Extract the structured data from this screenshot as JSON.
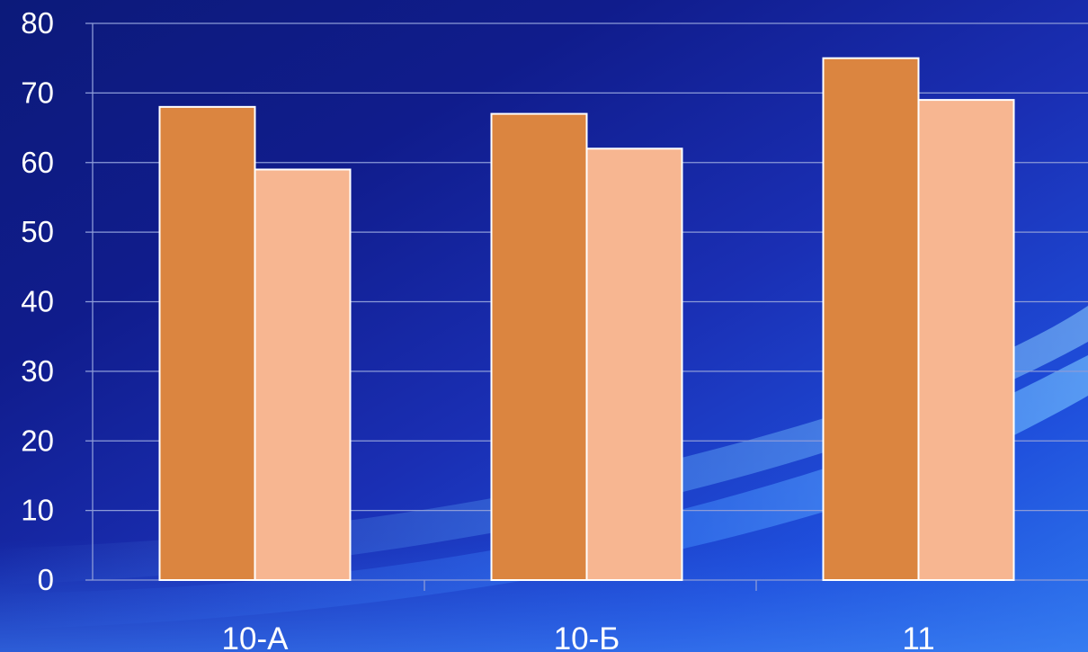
{
  "chart_data": {
    "type": "bar",
    "title": "",
    "xlabel": "",
    "ylabel": "",
    "categories": [
      "10-А",
      "10-Б",
      "11"
    ],
    "series": [
      {
        "values": [
          68,
          67,
          75
        ],
        "color": "#db8540"
      },
      {
        "values": [
          59,
          62,
          69
        ],
        "color": "#f7b691"
      }
    ],
    "ylim": [
      0,
      80
    ],
    "yticks": [
      "0",
      "10",
      "20",
      "30",
      "40",
      "50",
      "60",
      "70",
      "80"
    ],
    "grid": true,
    "legend": "none"
  },
  "colors": {
    "background": "#1328a8",
    "gridline": "#8c9bd8",
    "text": "#ffffff",
    "bar_border": "#ffffff"
  }
}
